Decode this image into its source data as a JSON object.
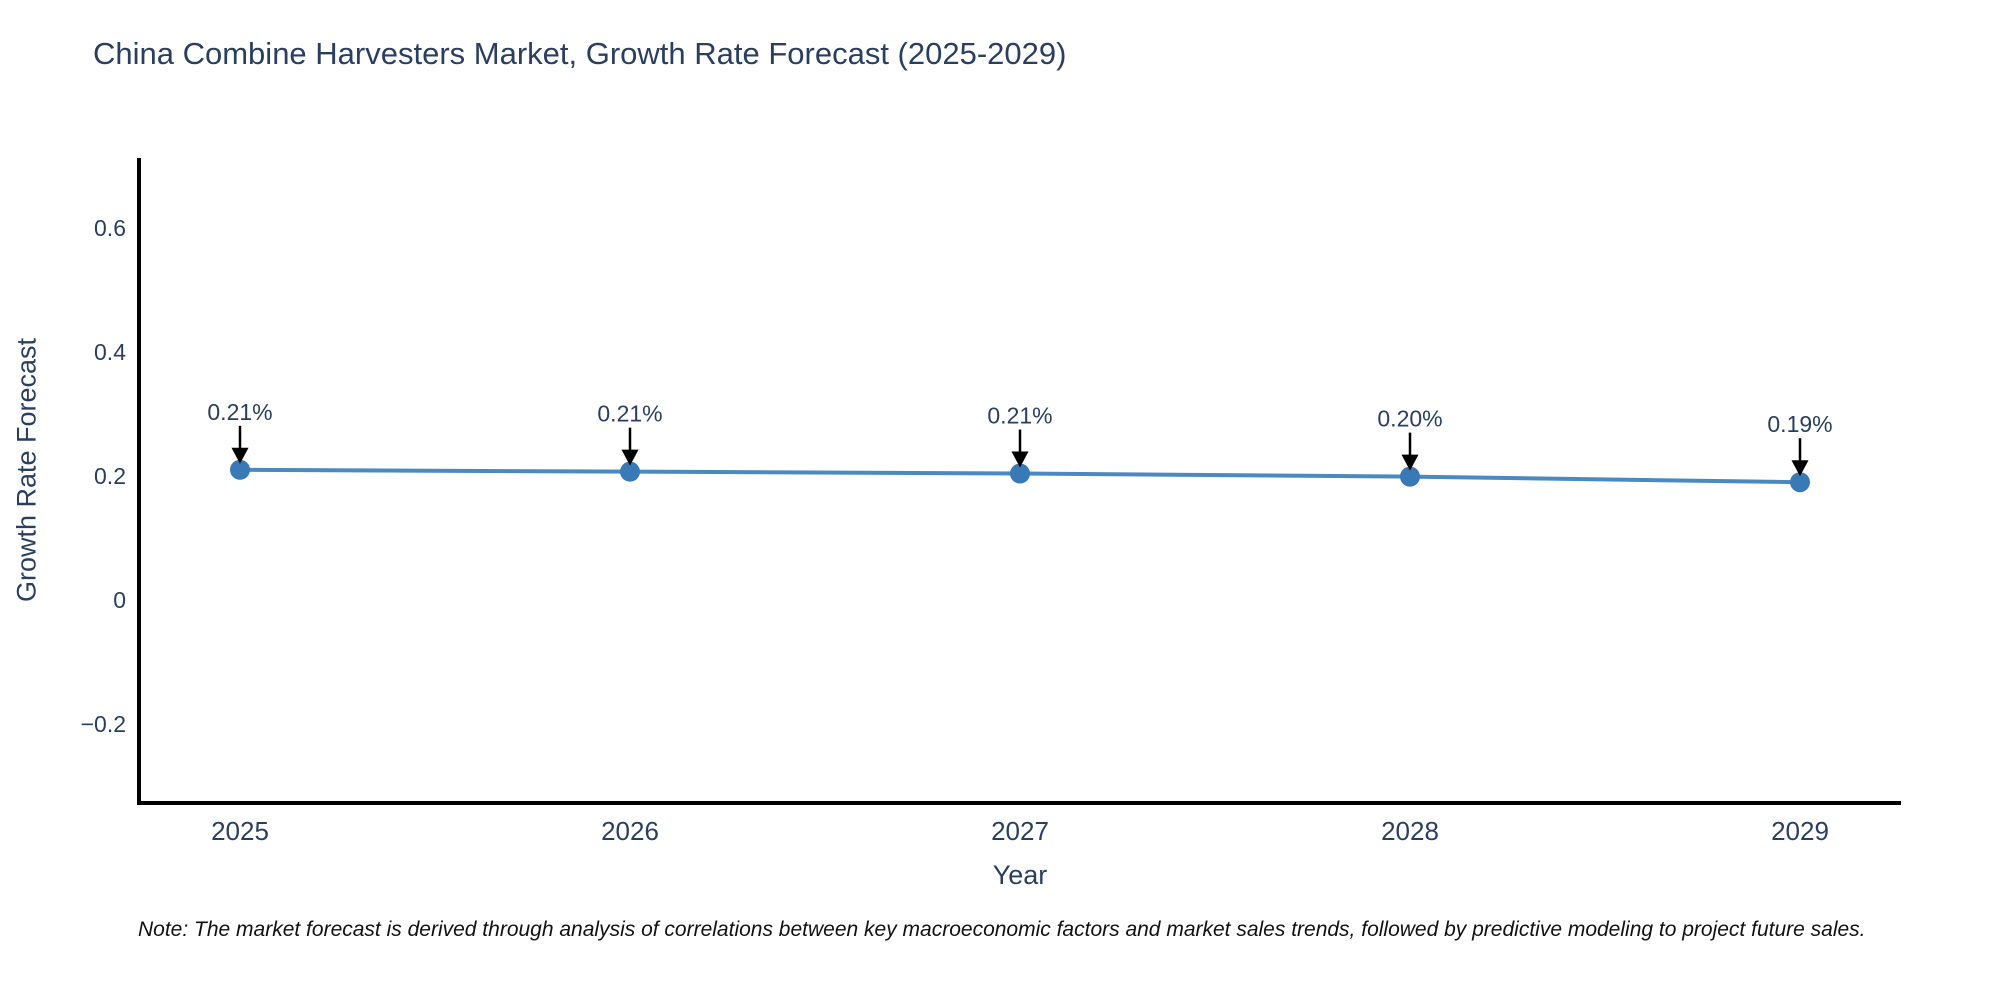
{
  "chart": {
    "title": "China Combine Harvesters Market, Growth Rate Forecast (2025-2029)",
    "note": "Note: The market forecast is derived through analysis of correlations between key macroeconomic factors and market sales trends, followed by predictive modeling to project future sales.",
    "colors": {
      "title_text": "#2a3f5f",
      "tick_text": "#2a3f5f",
      "annotation_text": "#2a3f5f",
      "axis_line": "#000000",
      "line": "#4a8ac1",
      "marker": "#3979b5",
      "arrow": "#000000",
      "note_text": "#111111",
      "background": "#ffffff"
    }
  },
  "chart_data": {
    "type": "line",
    "title": "China Combine Harvesters Market, Growth Rate Forecast (2025-2029)",
    "xlabel": "Year",
    "ylabel": "Growth Rate Forecast",
    "x": [
      2025,
      2026,
      2027,
      2028,
      2029
    ],
    "values": [
      0.21,
      0.21,
      0.21,
      0.2,
      0.19
    ],
    "values_plot": [
      0.21,
      0.207,
      0.204,
      0.199,
      0.19
    ],
    "point_labels": [
      "0.21%",
      "0.21%",
      "0.21%",
      "0.20%",
      "0.19%"
    ],
    "yticks": [
      0.6,
      0.4,
      0.2,
      0,
      -0.2
    ],
    "ylim": [
      -0.33,
      0.71
    ],
    "grid": false,
    "legend": false,
    "annotations": "black arrows pointing down from each value label to its data point"
  }
}
